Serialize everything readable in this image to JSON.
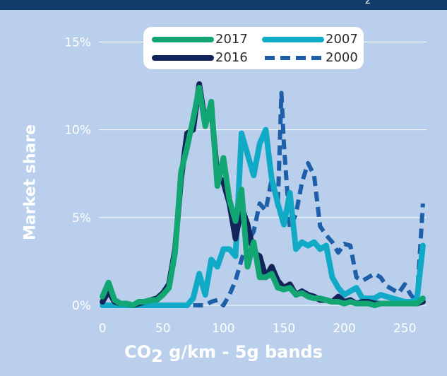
{
  "header": {
    "text": "2"
  },
  "chart_data": {
    "type": "line",
    "title": "",
    "xlabel_main": "CO",
    "xlabel_sub": "2",
    "xlabel_tail": " g/km - 5g bands",
    "ylabel": "Market share",
    "xlim": [
      -3,
      268
    ],
    "ylim": [
      0,
      15.5
    ],
    "x_ticks": [
      "0",
      "50",
      "100",
      "150",
      "200",
      "250"
    ],
    "x_tick_values": [
      0,
      50,
      100,
      150,
      200,
      250
    ],
    "y_ticks": [
      "0%",
      "5%",
      "10%",
      "15%"
    ],
    "y_tick_values": [
      0,
      5,
      10,
      15
    ],
    "grid": "horizontal",
    "legend_position": "top-center",
    "series": [
      {
        "name": "2000",
        "color": "#1d5fa8",
        "dashed": true,
        "x": [
          75,
          80,
          85,
          90,
          95,
          100,
          105,
          110,
          115,
          120,
          125,
          130,
          135,
          140,
          145,
          148,
          150,
          155,
          160,
          165,
          170,
          175,
          180,
          185,
          190,
          195,
          200,
          205,
          210,
          215,
          220,
          225,
          230,
          235,
          240,
          245,
          250,
          255,
          260,
          265
        ],
        "y": [
          0,
          0,
          0,
          0.2,
          0.3,
          0,
          0.6,
          1.4,
          2.6,
          3.6,
          4.2,
          5.8,
          5.4,
          7.2,
          5.6,
          12.1,
          9.2,
          4.4,
          5.2,
          7.0,
          8.1,
          7.4,
          4.5,
          4.0,
          3.6,
          3.0,
          3.5,
          3.4,
          1.6,
          1.4,
          1.6,
          1.8,
          1.6,
          1.1,
          0.9,
          0.7,
          1.2,
          0.6,
          0.2,
          5.8
        ]
      },
      {
        "name": "2007",
        "color": "#10aac6",
        "dashed": false,
        "x": [
          0,
          10,
          20,
          30,
          40,
          50,
          60,
          65,
          70,
          75,
          80,
          85,
          90,
          95,
          100,
          105,
          110,
          115,
          120,
          125,
          130,
          135,
          140,
          145,
          150,
          155,
          160,
          165,
          170,
          175,
          180,
          185,
          190,
          195,
          200,
          205,
          210,
          215,
          220,
          225,
          230,
          235,
          240,
          245,
          250,
          255,
          260,
          265
        ],
        "y": [
          0,
          0,
          0,
          0,
          0,
          0,
          0,
          0,
          0,
          0.4,
          1.8,
          0.6,
          2.6,
          2.2,
          3.2,
          3.2,
          2.8,
          9.8,
          8.6,
          7.4,
          9.2,
          10.0,
          7.2,
          5.8,
          4.6,
          6.4,
          3.2,
          3.6,
          3.4,
          3.6,
          3.2,
          3.4,
          1.6,
          1.0,
          0.6,
          0.8,
          1.0,
          0.4,
          0.4,
          0.4,
          0.6,
          0.5,
          0.4,
          0.3,
          0.2,
          0.2,
          0.3,
          3.4
        ]
      },
      {
        "name": "2016",
        "color": "#13245a",
        "dashed": false,
        "x": [
          0,
          5,
          10,
          15,
          20,
          25,
          30,
          35,
          40,
          45,
          50,
          55,
          60,
          65,
          70,
          75,
          80,
          85,
          90,
          95,
          100,
          105,
          110,
          115,
          120,
          125,
          130,
          135,
          140,
          145,
          150,
          155,
          160,
          165,
          170,
          175,
          180,
          185,
          190,
          195,
          200,
          205,
          210,
          215,
          220,
          225,
          230,
          235,
          240,
          245,
          250,
          255,
          260,
          265
        ],
        "y": [
          0.2,
          0.8,
          0.2,
          0.1,
          0.1,
          0,
          0.1,
          0.2,
          0.3,
          0.4,
          0.7,
          1.2,
          3.2,
          7.2,
          9.8,
          10.0,
          12.6,
          10.4,
          11.2,
          7.4,
          7.0,
          5.8,
          3.8,
          5.6,
          4.6,
          3.0,
          2.8,
          1.6,
          2.2,
          1.4,
          1.0,
          1.2,
          0.6,
          0.8,
          0.6,
          0.5,
          0.3,
          0.3,
          0.2,
          0.5,
          0.2,
          0.3,
          0.1,
          0.2,
          0.2,
          0.1,
          0.1,
          0.1,
          0.1,
          0.1,
          0.1,
          0.1,
          0.1,
          0.2
        ]
      },
      {
        "name": "2017",
        "color": "#12a673",
        "dashed": false,
        "x": [
          0,
          5,
          10,
          15,
          20,
          25,
          30,
          35,
          40,
          45,
          50,
          55,
          60,
          65,
          70,
          75,
          80,
          85,
          90,
          95,
          100,
          105,
          110,
          115,
          120,
          125,
          130,
          135,
          140,
          145,
          150,
          155,
          160,
          165,
          170,
          175,
          180,
          185,
          190,
          195,
          200,
          205,
          210,
          215,
          220,
          225,
          230,
          235,
          240,
          245,
          250,
          255,
          260,
          265
        ],
        "y": [
          0.5,
          1.3,
          0.3,
          0.1,
          0.1,
          0,
          0.2,
          0.2,
          0.3,
          0.3,
          0.6,
          1.0,
          3.0,
          7.6,
          9.0,
          10.6,
          12.4,
          10.2,
          11.6,
          6.8,
          8.4,
          6.0,
          4.8,
          6.6,
          2.2,
          3.6,
          1.6,
          1.6,
          1.8,
          1.0,
          0.9,
          1.0,
          0.6,
          0.7,
          0.5,
          0.4,
          0.4,
          0.3,
          0.2,
          0.2,
          0.1,
          0.2,
          0.1,
          0.1,
          0.1,
          0,
          0.1,
          0.1,
          0.1,
          0.1,
          0.1,
          0.1,
          0.1,
          0.4
        ]
      }
    ],
    "legend": [
      {
        "label": "2017",
        "color": "#12a673",
        "dashed": false
      },
      {
        "label": "2007",
        "color": "#10aac6",
        "dashed": false
      },
      {
        "label": "2016",
        "color": "#13245a",
        "dashed": false
      },
      {
        "label": "2000",
        "color": "#1d5fa8",
        "dashed": true
      }
    ]
  }
}
